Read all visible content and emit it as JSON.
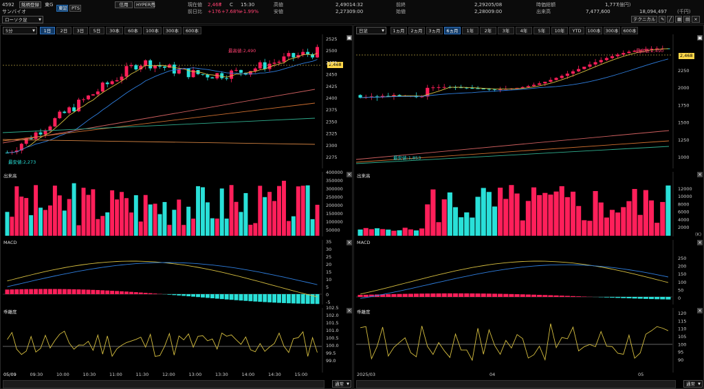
{
  "header": {
    "code": "4592",
    "buttons": {
      "register": "銘柄登録",
      "market": "東G",
      "tosho": "東証",
      "pts": "PTS",
      "shinyo": "信用",
      "hyper": "HYPER売"
    },
    "name": "サンバイオ",
    "current_label": "現在値",
    "current_value": "2,468",
    "current_mark": "C",
    "current_time": "15:30",
    "change_label": "前日比",
    "change_value": "+176",
    "change_pct": "+7.68%",
    "change_extra": "+1.99%",
    "high_label": "高値",
    "high_value": "2,490",
    "high_time": "14:32",
    "low_label": "安値",
    "low_value": "2,273",
    "low_time": "09:00",
    "prev_label": "前終",
    "prev_value": "2,292",
    "prev_date": "05/08",
    "open_label": "始値",
    "open_value": "2,280",
    "open_time": "09:00",
    "mcap_label": "時価総額",
    "mcap_value": "1,777",
    "mcap_unit": "(億円)",
    "vol_label": "出来高",
    "vol_value": "7,477,600",
    "amt_label": "売買代金",
    "amt_value": "18,094,497",
    "amt_unit": "(千円)",
    "technical": "テクニカル"
  },
  "left": {
    "chart_type": "ローソク足",
    "interval": "5分",
    "periods": [
      "1日",
      "2日",
      "3日",
      "5日",
      "30本",
      "60本",
      "100本",
      "300本",
      "600本"
    ],
    "price_tag": "2,468",
    "high_annot": "最高値:2,490",
    "low_annot": "最安値:2,273",
    "price_axis": [
      "2525",
      "2500",
      "2475",
      "2450",
      "2425",
      "2400",
      "2375",
      "2350",
      "2325",
      "2300",
      "2275"
    ],
    "volume_title": "出来高",
    "volume_axis": [
      "400000",
      "350000",
      "300000",
      "250000",
      "200000",
      "150000",
      "100000",
      "50000"
    ],
    "macd_title": "MACD",
    "macd_axis": [
      "35",
      "30",
      "25",
      "20",
      "15",
      "10",
      "5",
      "0",
      "-5"
    ],
    "dev_title": "乖離度",
    "dev_axis": [
      "102.5",
      "102.0",
      "101.5",
      "101.0",
      "100.5",
      "100.0",
      "99.5",
      "99.0"
    ],
    "time_axis": [
      "05/09",
      "09:30",
      "10:00",
      "10:30",
      "11:00",
      "11:30",
      "12:00",
      "13:00",
      "13:30",
      "14:00",
      "14:30",
      "15:00"
    ],
    "nav_mode": "通常"
  },
  "right": {
    "interval": "日足",
    "periods": [
      "1ヵ月",
      "2ヵ月",
      "3ヵ月",
      "6ヵ月",
      "1年",
      "2年",
      "3年",
      "4年",
      "5年",
      "10年",
      "YTD",
      "100本",
      "300本",
      "600本"
    ],
    "price_tag": "2,468",
    "high_annot": "最高値:2,490",
    "low_annot": "最安値:1,853",
    "price_axis": [
      "2250",
      "2000",
      "1750",
      "1500",
      "1250",
      "1000"
    ],
    "volume_title": "出来高",
    "volume_axis": [
      "12000",
      "10000",
      "8000",
      "6000",
      "4000",
      "2000"
    ],
    "volume_unit": "(K)",
    "macd_title": "MACD",
    "macd_axis": [
      "250",
      "200",
      "150",
      "100",
      "50",
      "0"
    ],
    "dev_title": "乖離度",
    "dev_axis": [
      "120",
      "115",
      "110",
      "105",
      "100",
      "95",
      "90"
    ],
    "time_axis": [
      "2025/03",
      "04",
      "05"
    ],
    "nav_mode": "通常"
  },
  "colors": {
    "up": "#ff1f5a",
    "down": "#29e0d8",
    "ma_short": "#d8c040",
    "ma_mid": "#2f7fe0",
    "ma_long": "#d06060",
    "ma_long2": "#d07030",
    "ma_long3": "#30b090",
    "tag": "#ffd84a"
  }
}
